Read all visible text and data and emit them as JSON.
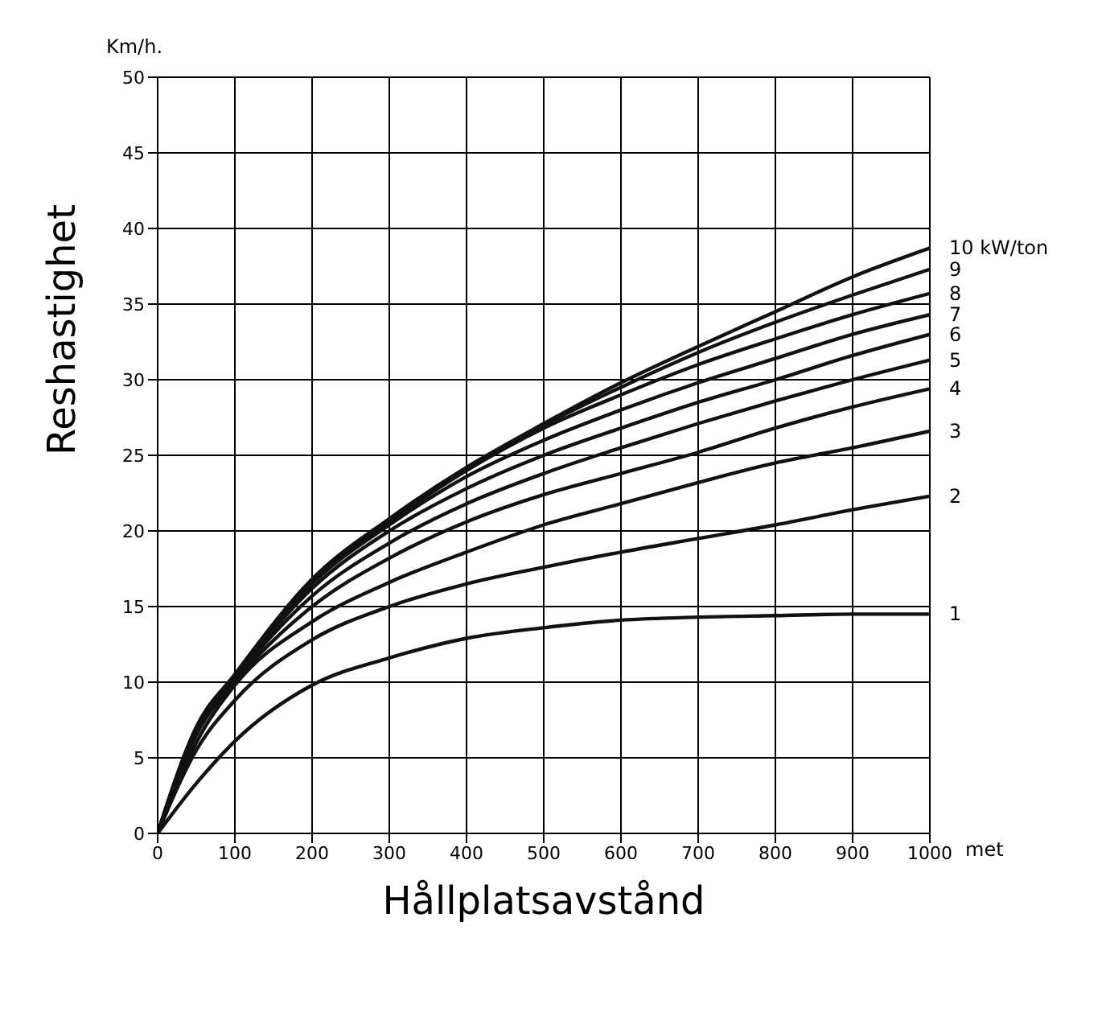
{
  "chart_data": {
    "type": "line",
    "xlabel": "Hållplatsavstånd",
    "ylabel": "Reshastighet",
    "annotations": [
      "Km/h.",
      "met"
    ],
    "x": [
      0,
      50,
      100,
      200,
      300,
      400,
      500,
      600,
      700,
      800,
      900,
      1000
    ],
    "series": [
      {
        "name": "10 kW/ton",
        "color": "#111111",
        "values": [
          0,
          7,
          10.5,
          16.8,
          20.8,
          24.2,
          27.1,
          29.8,
          32.2,
          34.5,
          36.8,
          38.7
        ]
      },
      {
        "name": "9",
        "color": "#111111",
        "values": [
          0,
          7,
          10.5,
          16.8,
          20.8,
          24.2,
          27,
          29.5,
          31.8,
          33.8,
          35.6,
          37.3
        ]
      },
      {
        "name": "8",
        "color": "#111111",
        "values": [
          0,
          7,
          10.5,
          16.7,
          20.6,
          24,
          26.8,
          29,
          31,
          32.7,
          34.3,
          35.7
        ]
      },
      {
        "name": "7",
        "color": "#111111",
        "values": [
          0,
          6.9,
          10.4,
          16.5,
          20.4,
          23.6,
          26,
          28,
          29.8,
          31.4,
          33,
          34.3
        ]
      },
      {
        "name": "6",
        "color": "#111111",
        "values": [
          0,
          6.9,
          10.3,
          16.2,
          20,
          22.8,
          25,
          26.8,
          28.5,
          30,
          31.6,
          33
        ]
      },
      {
        "name": "5",
        "color": "#111111",
        "values": [
          0,
          6.8,
          10.2,
          15.7,
          19.2,
          21.8,
          23.8,
          25.5,
          27.1,
          28.6,
          30,
          31.3
        ]
      },
      {
        "name": "4",
        "color": "#111111",
        "values": [
          0,
          6.5,
          10,
          15,
          18.2,
          20.6,
          22.4,
          23.8,
          25.2,
          26.8,
          28.2,
          29.4
        ]
      },
      {
        "name": "3",
        "color": "#111111",
        "values": [
          0,
          6,
          9.8,
          14,
          16.6,
          18.6,
          20.4,
          21.8,
          23.2,
          24.5,
          25.5,
          26.6
        ]
      },
      {
        "name": "2",
        "color": "#111111",
        "values": [
          0,
          5.5,
          8.8,
          12.8,
          15,
          16.5,
          17.6,
          18.6,
          19.5,
          20.4,
          21.4,
          22.3
        ]
      },
      {
        "name": "1",
        "color": "#111111",
        "values": [
          0,
          3.3,
          6.1,
          9.8,
          11.6,
          12.9,
          13.6,
          14.1,
          14.3,
          14.4,
          14.5,
          14.5
        ]
      }
    ],
    "xlim": [
      0,
      1000
    ],
    "xticks": [
      0,
      100,
      200,
      300,
      400,
      500,
      600,
      700,
      800,
      900,
      1000
    ],
    "ylim": [
      0,
      50
    ],
    "yticks": [
      0,
      5,
      10,
      15,
      20,
      25,
      30,
      35,
      40,
      45,
      50
    ],
    "grid": true,
    "marker": "none",
    "line_style": "solid"
  }
}
